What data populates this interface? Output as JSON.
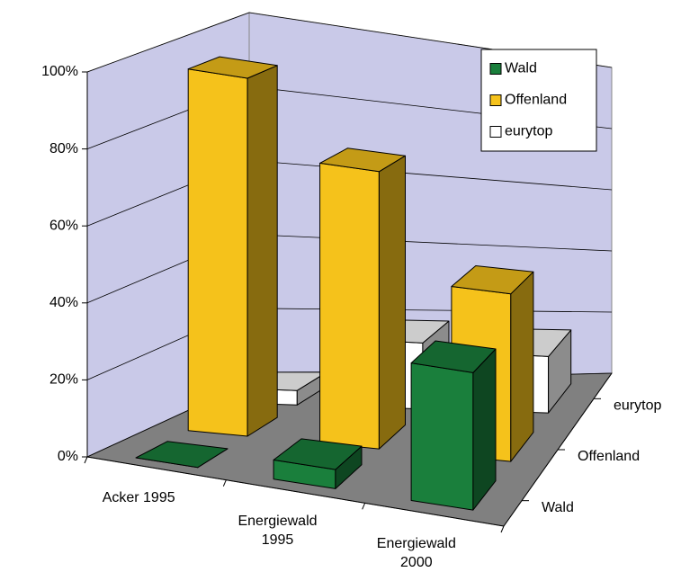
{
  "chart_data": {
    "type": "bar3d",
    "categories": [
      "Acker 1995",
      "Energiewald 1995",
      "Energiewald 2000"
    ],
    "series": [
      {
        "name": "Wald",
        "color": "#1a7f3c",
        "values": [
          0,
          5,
          36
        ]
      },
      {
        "name": "Offenland",
        "color": "#f5c21b",
        "values": [
          96,
          76,
          47
        ]
      },
      {
        "name": "eurytop",
        "color": "#ffffff",
        "values": [
          4,
          19,
          17
        ]
      }
    ],
    "ylim": [
      0,
      100
    ],
    "yticks": [
      {
        "value": 0,
        "label": "0%"
      },
      {
        "value": 20,
        "label": "20%"
      },
      {
        "value": 40,
        "label": "40%"
      },
      {
        "value": 60,
        "label": "60%"
      },
      {
        "value": 80,
        "label": "80%"
      },
      {
        "value": 100,
        "label": "100%"
      }
    ],
    "grid": true,
    "legend": "top-right"
  }
}
